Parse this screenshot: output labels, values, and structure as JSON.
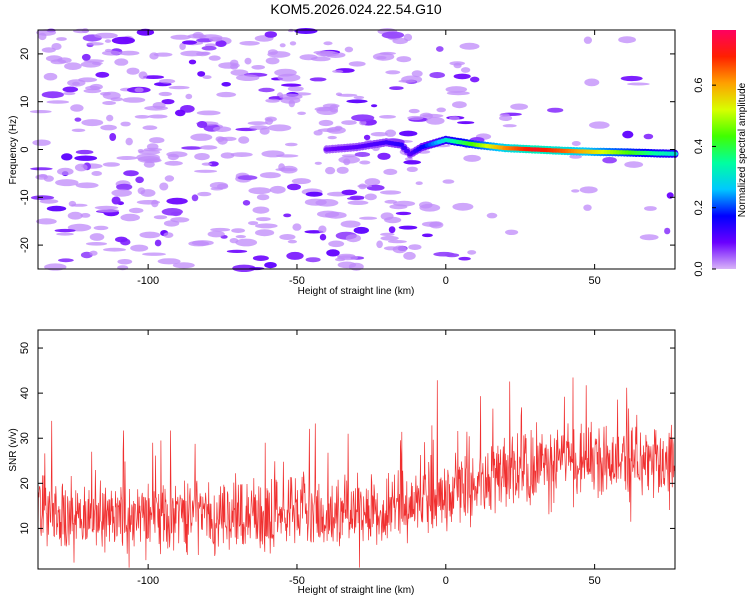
{
  "title": "KOM5.2026.024.22.54.G10",
  "chart_data": [
    {
      "type": "heatmap",
      "name": "spectrogram",
      "xlabel": "Height of straight line (km)",
      "ylabel": "Frequency (Hz)",
      "xlim": [
        -137,
        77
      ],
      "ylim": [
        -25,
        25
      ],
      "xticks": [
        -100,
        -50,
        0,
        50
      ],
      "yticks": [
        -20,
        -10,
        0,
        10,
        20
      ],
      "colorbar": {
        "label": "Normalized spectral amplitude",
        "range": [
          0.0,
          0.78
        ],
        "ticks": [
          0.0,
          0.2,
          0.4,
          0.6
        ],
        "tick_labels": [
          "0.0",
          "0.2",
          "0.4",
          "0.6"
        ],
        "colors": [
          "#d8b4f8",
          "#6a00ff",
          "#0000ff",
          "#00c8ff",
          "#00ffa0",
          "#40ff00",
          "#d8ff00",
          "#ffa000",
          "#ff2000",
          "#ff0060"
        ]
      },
      "ridge": {
        "description_x": [
          -40,
          -30,
          -20,
          -15,
          -12,
          -8,
          0,
          10,
          20,
          30,
          40,
          50,
          60,
          70,
          77
        ],
        "frequency_hz": [
          0,
          0.5,
          1.5,
          1,
          -1,
          0.5,
          2,
          1,
          0.3,
          0,
          -0.3,
          -0.5,
          -0.6,
          -0.8,
          -0.9
        ],
        "amplitude": [
          0.08,
          0.1,
          0.12,
          0.14,
          0.1,
          0.16,
          0.3,
          0.45,
          0.62,
          0.72,
          0.65,
          0.55,
          0.45,
          0.35,
          0.3
        ]
      }
    },
    {
      "type": "line",
      "name": "snr",
      "xlabel": "Height of straight line (km)",
      "ylabel": "SNR (v/v)",
      "xlim": [
        -137,
        77
      ],
      "ylim": [
        1,
        54
      ],
      "xticks": [
        -100,
        -50,
        0,
        50
      ],
      "yticks": [
        10,
        20,
        30,
        40,
        50
      ],
      "color": "#f03030",
      "trend_x": [
        -137,
        -100,
        -50,
        -20,
        0,
        20,
        40,
        60,
        77
      ],
      "trend_mean": [
        13,
        12.5,
        13.5,
        14.5,
        17,
        22,
        25,
        25,
        25
      ],
      "spread": 6
    }
  ]
}
